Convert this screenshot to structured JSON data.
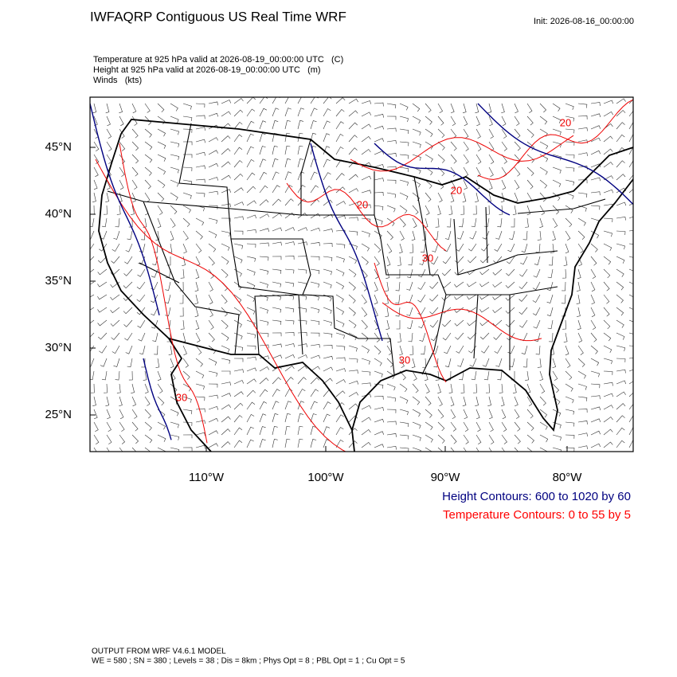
{
  "header": {
    "title": "IWFAQRP Contiguous US Real Time WRF",
    "init": "Init: 2026-08-16_00:00:00"
  },
  "subtitle_lines": [
    "Temperature at 925 hPa valid at 2026-08-19_00:00:00 UTC   (C)",
    "Height at 925 hPa valid at 2026-08-19_00:00:00 UTC   (m)",
    "Winds   (kts)"
  ],
  "map": {
    "lat_labels": [
      "45°N",
      "40°N",
      "35°N",
      "30°N",
      "25°N"
    ],
    "lon_labels": [
      "110°W",
      "100°W",
      "90°W",
      "80°W"
    ],
    "contour_labels": [
      "20",
      "20",
      "20",
      "30",
      "30",
      "30"
    ]
  },
  "legend": [
    "Height Contours: 600 to 1020 by 60",
    "Temperature Contours: 0 to 55 by 5"
  ],
  "footer": [
    "OUTPUT FROM WRF V4.6.1 MODEL",
    "WE = 580 ; SN = 380 ; Levels = 38 ; Dis = 8km ; Phys Opt = 8 ; PBL Opt = 1 ; Cu Opt = 5"
  ]
}
